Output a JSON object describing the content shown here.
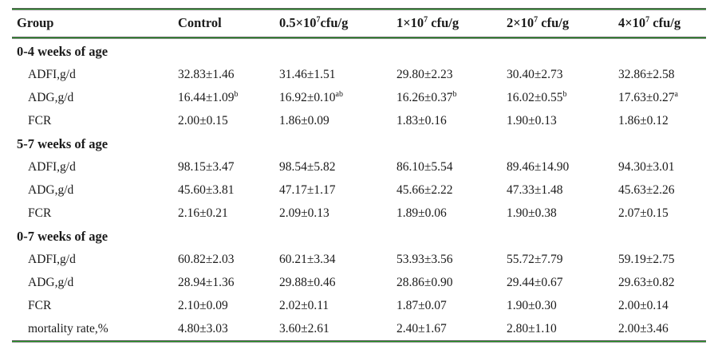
{
  "colors": {
    "rule_green": "#1f921f",
    "text": "#1b1b1b"
  },
  "chart_data": {
    "type": "table",
    "title": "",
    "columns": [
      "Group",
      "Control",
      "0.5×10^{7}cfu/g",
      "1×10^{7} cfu/g",
      "2×10^{7} cfu/g",
      "4×10^{7} cfu/g"
    ],
    "rows": [
      {
        "type": "section",
        "label": "0-4 weeks of age",
        "values": []
      },
      {
        "type": "data",
        "label": "ADFI,g/d",
        "values": [
          "32.83±1.46",
          "31.46±1.51",
          "29.80±2.23",
          "30.40±2.73",
          "32.86±2.58"
        ]
      },
      {
        "type": "data",
        "label": "ADG,g/d",
        "values": [
          "16.44±1.09^{b}",
          "16.92±0.10^{ab}",
          "16.26±0.37^{b}",
          "16.02±0.55^{b}",
          "17.63±0.27^{a}"
        ]
      },
      {
        "type": "data",
        "label": "FCR",
        "values": [
          "2.00±0.15",
          "1.86±0.09",
          "1.83±0.16",
          "1.90±0.13",
          "1.86±0.12"
        ]
      },
      {
        "type": "section",
        "label": "5-7 weeks of age",
        "values": []
      },
      {
        "type": "data",
        "label": "ADFI,g/d",
        "values": [
          "98.15±3.47",
          "98.54±5.82",
          "86.10±5.54",
          "89.46±14.90",
          "94.30±3.01"
        ]
      },
      {
        "type": "data",
        "label": "ADG,g/d",
        "values": [
          "45.60±3.81",
          "47.17±1.17",
          "45.66±2.22",
          "47.33±1.48",
          "45.63±2.26"
        ]
      },
      {
        "type": "data",
        "label": "FCR",
        "values": [
          "2.16±0.21",
          "2.09±0.13",
          "1.89±0.06",
          "1.90±0.38",
          "2.07±0.15"
        ]
      },
      {
        "type": "section",
        "label": "0-7 weeks of age",
        "values": []
      },
      {
        "type": "data",
        "label": "ADFI,g/d",
        "values": [
          "60.82±2.03",
          "60.21±3.34",
          "53.93±3.56",
          "55.72±7.79",
          "59.19±2.75"
        ]
      },
      {
        "type": "data",
        "label": "ADG,g/d",
        "values": [
          "28.94±1.36",
          "29.88±0.46",
          "28.86±0.90",
          "29.44±0.67",
          "29.63±0.82"
        ]
      },
      {
        "type": "data",
        "label": "FCR",
        "values": [
          "2.10±0.09",
          "2.02±0.11",
          "1.87±0.07",
          "1.90±0.30",
          "2.00±0.14"
        ]
      },
      {
        "type": "data",
        "label": "mortality rate,%",
        "values": [
          "4.80±3.03",
          "3.60±2.61",
          "2.40±1.67",
          "2.80±1.10",
          "2.00±3.46"
        ]
      }
    ]
  }
}
